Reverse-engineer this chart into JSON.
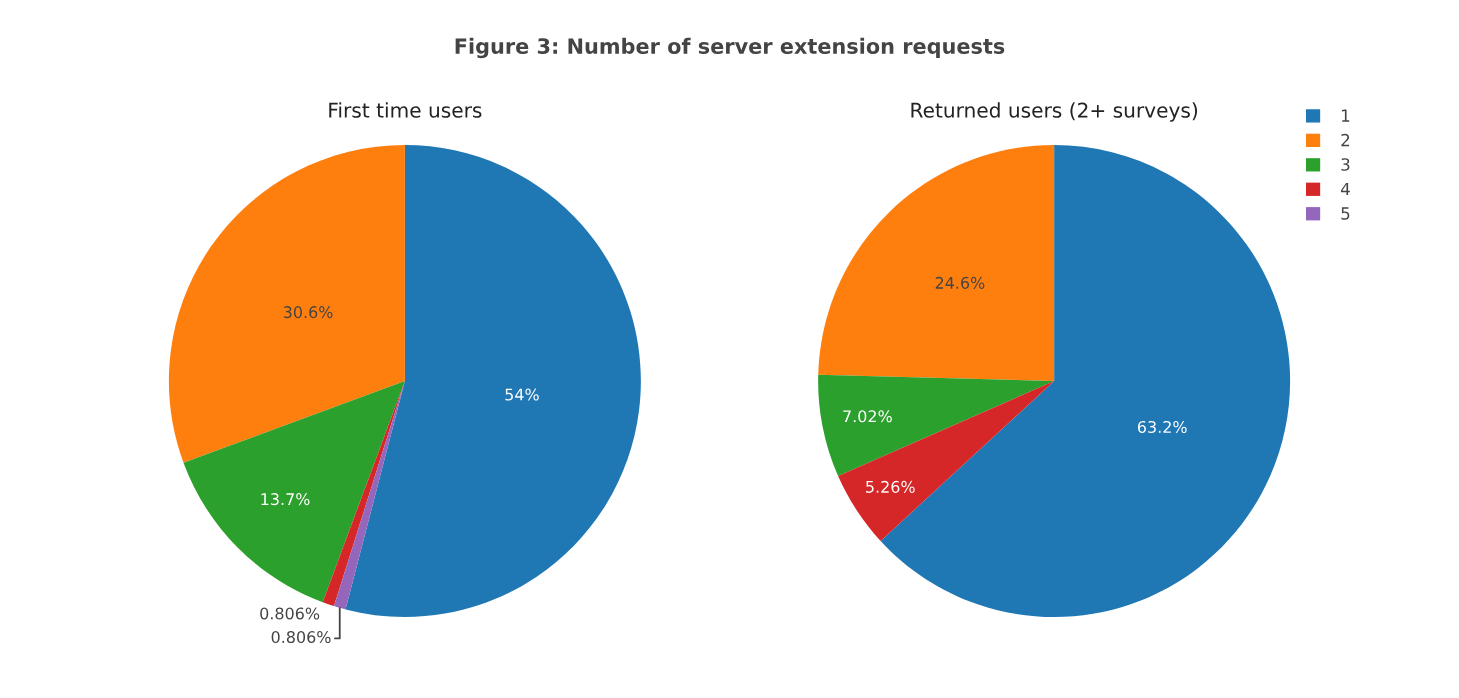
{
  "chart_data": [
    {
      "type": "pie",
      "title": "Figure 3: Number of server extension requests",
      "subtitle": "First time users",
      "categories": [
        "1",
        "2",
        "3",
        "4",
        "5"
      ],
      "values": [
        54,
        30.6,
        13.7,
        0.806,
        0.806
      ],
      "colors": [
        "#1f77b4",
        "#ff7f0e",
        "#2ca02c",
        "#d62728",
        "#9467bd"
      ],
      "value_labels": [
        "54%",
        "30.6%",
        "13.7%",
        "0.806%",
        "0.806%"
      ],
      "legend": "top right"
    },
    {
      "type": "pie",
      "subtitle": "Returned users (2+ surveys)",
      "categories": [
        null,
        null,
        null,
        null
      ],
      "values": [
        63.2,
        24.6,
        7.02,
        5.26
      ],
      "colors": [
        "#1f77b4",
        "#ff7f0e",
        "#2ca02c",
        "#d62728"
      ],
      "value_labels": [
        "63.2%",
        "24.6%",
        "7.02%",
        "5.26%"
      ]
    }
  ]
}
